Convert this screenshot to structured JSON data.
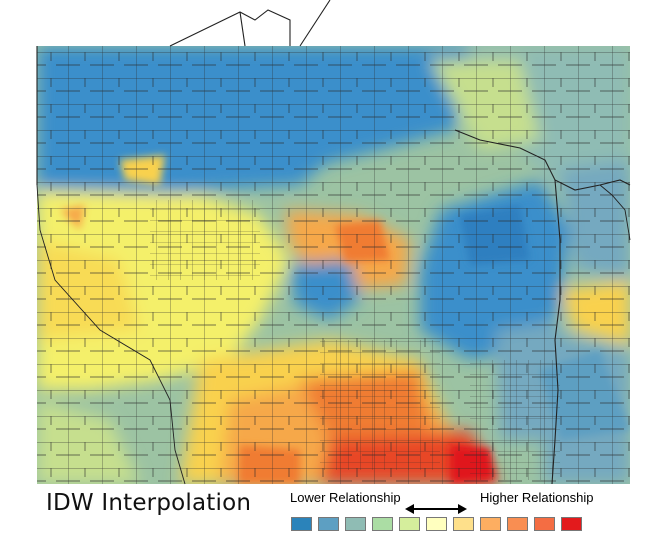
{
  "title": "IDW Interpolation",
  "legend": {
    "lower_label": "Lower Relationship",
    "higher_label": "Higher Relationship",
    "classes": [
      {
        "color": "#2b83ba"
      },
      {
        "color": "#5d9fc2"
      },
      {
        "color": "#8fbcb4"
      },
      {
        "color": "#abdda4"
      },
      {
        "color": "#d5ee9c"
      },
      {
        "color": "#ffffbf"
      },
      {
        "color": "#fee08b"
      },
      {
        "color": "#fdae61"
      },
      {
        "color": "#f98e52"
      },
      {
        "color": "#f46d43"
      },
      {
        "color": "#e31a1c"
      }
    ]
  },
  "map": {
    "surface_colors": {
      "blue": "#3a8fcb",
      "teal": "#74a9c0",
      "green": "#9cc3a3",
      "lightgreen": "#c6df8e",
      "yellow": "#f4f06a",
      "gold": "#f9d14d",
      "orange": "#f6a84a",
      "darkorange": "#f07c32",
      "red": "#e84626",
      "crimson": "#e0141f"
    },
    "boundary_color": "#2a2a2a"
  }
}
